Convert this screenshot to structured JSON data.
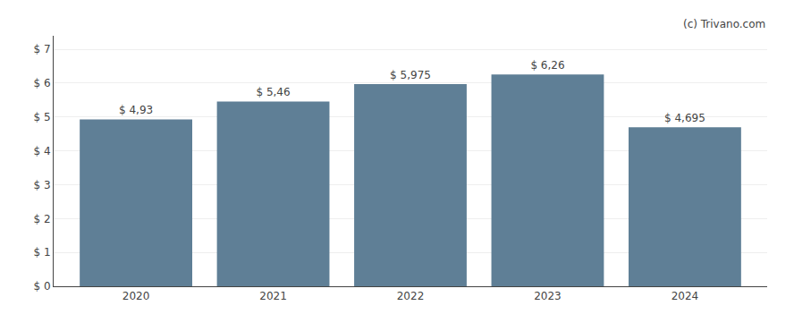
{
  "chart_data": {
    "type": "bar",
    "categories": [
      "2020",
      "2021",
      "2022",
      "2023",
      "2024"
    ],
    "values": [
      4.93,
      5.46,
      5.975,
      6.26,
      4.695
    ],
    "value_labels": [
      "$ 4,93",
      "$ 5,46",
      "$ 5,975",
      "$ 6,26",
      "$ 4,695"
    ],
    "data_labels": true,
    "color": "#5f7f96",
    "ylim": [
      0,
      7.4
    ],
    "yticks": [
      {
        "value": 0,
        "label": "$ 0"
      },
      {
        "value": 1,
        "label": "$ 1"
      },
      {
        "value": 2,
        "label": "$ 2"
      },
      {
        "value": 3,
        "label": "$ 3"
      },
      {
        "value": 4,
        "label": "$ 4"
      },
      {
        "value": 5,
        "label": "$ 5"
      },
      {
        "value": 6,
        "label": "$ 6"
      },
      {
        "value": 7,
        "label": "$ 7"
      }
    ],
    "grid": true,
    "annotations": [
      "(c) Trivano.com"
    ]
  }
}
